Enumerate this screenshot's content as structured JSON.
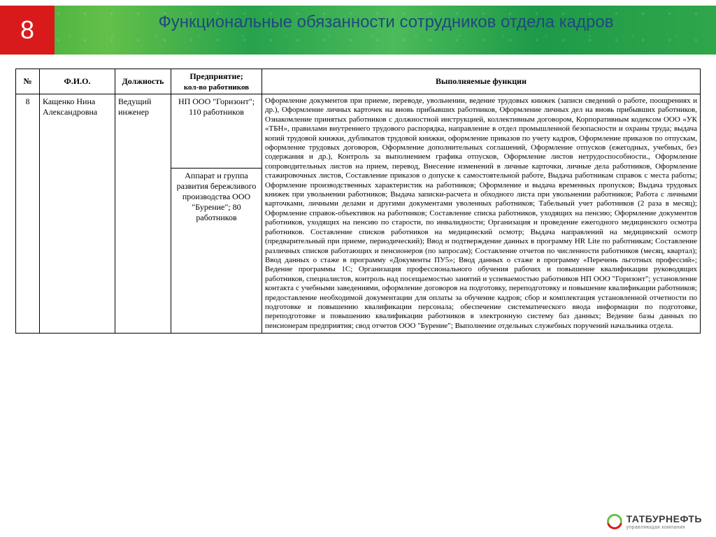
{
  "slide_number": "8",
  "title": "Функциональные обязанности сотрудников отдела кадров",
  "table": {
    "headers": {
      "num": "№",
      "fio": "Ф.И.О.",
      "position": "Должность",
      "enterprise_line1": "Предприятие;",
      "enterprise_line2": "кол-во работников",
      "functions": "Выполняемые функции"
    },
    "row": {
      "num": "8",
      "fio": "Кащенко Нина Александровна",
      "position": "Ведущий инженер",
      "enterprise1": "НП ООО \"Горизонт\"; 110 работников",
      "enterprise2": "Аппарат и группа развития бережливого производства ООО \"Бурение\"; 80 работников",
      "functions": "Оформление документов при приеме, переводе, увольнении, ведение трудовых книжек (записи сведений о работе, поощрениях и др.), Оформление личных карточек на вновь прибывших работников, Оформление личных дел на вновь прибывших работников, Ознакомление принятых работников с должностной инструкцией, коллективным договором, Корпоративным кодексом ООО «УК «ТБН», правилами внутреннего трудового распорядка, направление в отдел промышленной безопасности и охраны труда; выдача копий трудовой книжки, дубликатов трудовой книжки, оформление приказов по учету кадров, Оформление приказов по отпускам, оформление трудовых договоров, Оформление дополнительных соглашений, Оформление отпусков (ежегодных, учебных, без содержания и др.), Контроль за выполнением графика отпусков, Оформление листов нетрудоспособности., Оформление сопроводительных листов на прием, перевод, Внесение изменений в личные карточки, личные дела работников, Оформление стажировочных листов, Составление приказов о допуске к самостоятельной работе, Выдача работникам справок с места работы; Оформление производственных характеристик на работников; Оформление и выдача временных пропусков; Выдача трудовых книжек при увольнении работников; Выдача записки-расчета и обходного листа при увольнении работников; Работа с личными карточками, личными делами и другими документами уволенных работников; Табельный учет работников (2 раза в месяц); Оформление справок-объективок на работников; Составление списка работников, уходящих на пенсию; Оформление документов работников, уходящих на пенсию по старости, по инвалидности; Организация и проведение ежегодного медицинского осмотра работников. Составление списков работников на медицинский осмотр; Выдача направлений на медицинский осмотр (предварительный при приеме, периодический); Ввод и подтверждение данных в программу HR Lite по работникам;  Составление различных списков работающих и пенсионеров (по запросам); Составление отчетов по численности работников  (месяц, квартал); Ввод данных о стаже в программу «Документы ПУ5»; Ввод данных о стаже в программу «Перечень льготных профессий»; Ведение программы 1С; Организация профессионального обучения рабочих и повышение квалификации руководящих работников, специалистов, контроль над посещаемостью занятий и успеваемостью работников НП ООО \"Горизонт\"; установление контакта с учебными заведениями, оформление договоров на подготовку, переподготовку и повышение квалификации работников; предоставление необходимой документации для оплаты за обучение кадров; сбор и комплектация установленной отчетности по подготовке и повышению квалификации персонала; обеспечение систематического ввода информации по подготовке, переподготовке и повышению квалификации работников в электронную систему баз данных; Ведение базы данных по пенсионерам предприятия; свод отчетов ООО \"Бурение\"; Выполнение отдельных служебных поручений начальника отдела."
    }
  },
  "logo": {
    "brand": "ТАТБУРНЕФТЬ",
    "tagline": "управляющая компания"
  },
  "colors": {
    "accent_red": "#d91a1a",
    "title_blue": "#1f497d",
    "banner_green": "#3eab3a",
    "logo_green": "#6fbf44"
  }
}
